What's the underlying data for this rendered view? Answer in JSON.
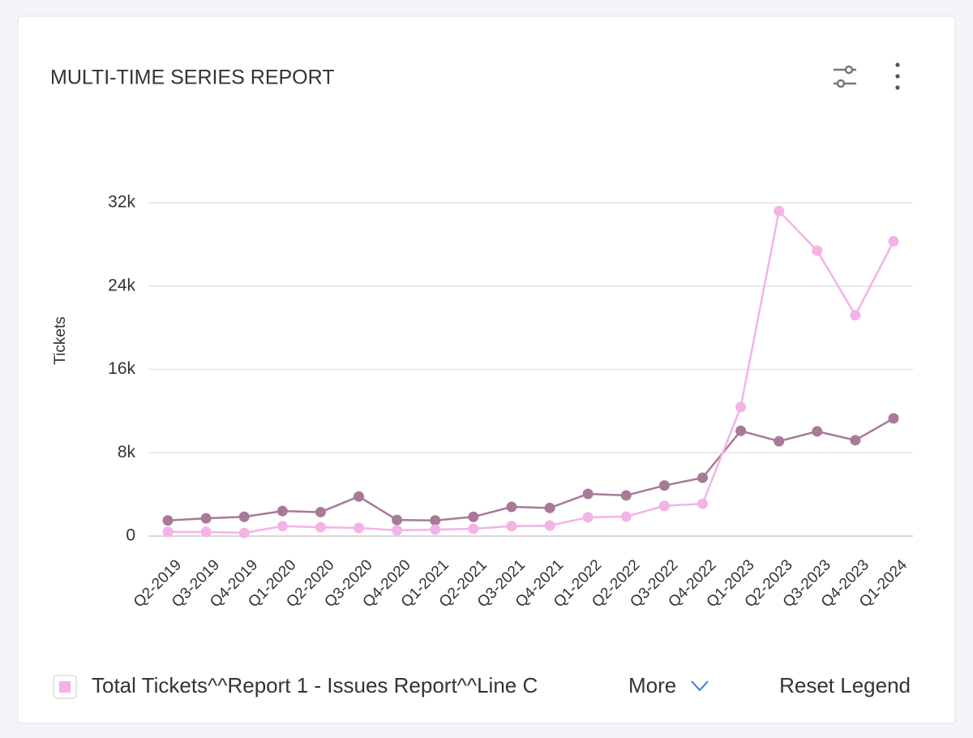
{
  "chart_data": {
    "type": "line",
    "title": "MULTI-TIME SERIES REPORT",
    "y_label": "Tickets",
    "categories": [
      "Q2-2019",
      "Q3-2019",
      "Q4-2019",
      "Q1-2020",
      "Q2-2020",
      "Q3-2020",
      "Q4-2020",
      "Q1-2021",
      "Q2-2021",
      "Q3-2021",
      "Q4-2021",
      "Q1-2022",
      "Q2-2022",
      "Q3-2022",
      "Q4-2022",
      "Q1-2023",
      "Q2-2023",
      "Q3-2023",
      "Q4-2023",
      "Q1-2024"
    ],
    "series": [
      {
        "name": "Total Tickets^^Report 1 - Issues Report^^Line C",
        "color": "#f4b3e6",
        "values": [
          400,
          400,
          300,
          950,
          850,
          780,
          550,
          620,
          700,
          950,
          1000,
          1800,
          1870,
          2900,
          3100,
          12400,
          31200,
          27400,
          21200,
          28300
        ]
      },
      {
        "color": "#a87a98",
        "values": [
          1500,
          1700,
          1850,
          2400,
          2300,
          3800,
          1550,
          1500,
          1850,
          2800,
          2700,
          4050,
          3900,
          4850,
          5600,
          10100,
          9100,
          10050,
          9200,
          11300
        ]
      }
    ],
    "ylim": [
      0,
      32000
    ],
    "yticks": [
      0,
      {
        "value": 8000,
        "label": "8k"
      },
      {
        "value": 16000,
        "label": "16k"
      },
      {
        "value": 24000,
        "label": "24k"
      },
      {
        "value": 32000,
        "label": "32k"
      }
    ],
    "grid": true
  },
  "legend_controls": {
    "more": "More",
    "reset": "Reset Legend"
  }
}
